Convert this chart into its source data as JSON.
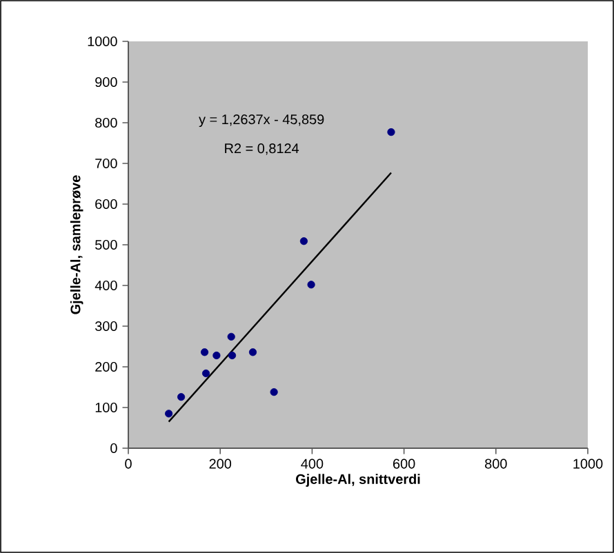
{
  "chart_data": {
    "type": "scatter",
    "xlabel": "Gjelle-Al, snittverdi",
    "ylabel": "Gjelle-Al, samleprøve",
    "xlim": [
      0,
      1000
    ],
    "ylim": [
      0,
      1000
    ],
    "xticks": [
      0,
      200,
      400,
      600,
      800,
      1000
    ],
    "yticks": [
      0,
      100,
      200,
      300,
      400,
      500,
      600,
      700,
      800,
      900,
      1000
    ],
    "grid": false,
    "annotations": [
      "y = 1,2637x - 45,859",
      "R2 = 0,8124"
    ],
    "series": [
      {
        "type": "scatter",
        "marker": "circle",
        "color": "#000080",
        "x": [
          88,
          115,
          166,
          169,
          192,
          224,
          226,
          271,
          317,
          398,
          382,
          572
        ],
        "values": [
          85,
          126,
          236,
          184,
          228,
          274,
          228,
          236,
          138,
          402,
          509,
          777
        ]
      },
      {
        "type": "line",
        "marker": "none",
        "color": "#000000",
        "x": [
          88,
          572
        ],
        "values": [
          65,
          677
        ]
      }
    ]
  }
}
